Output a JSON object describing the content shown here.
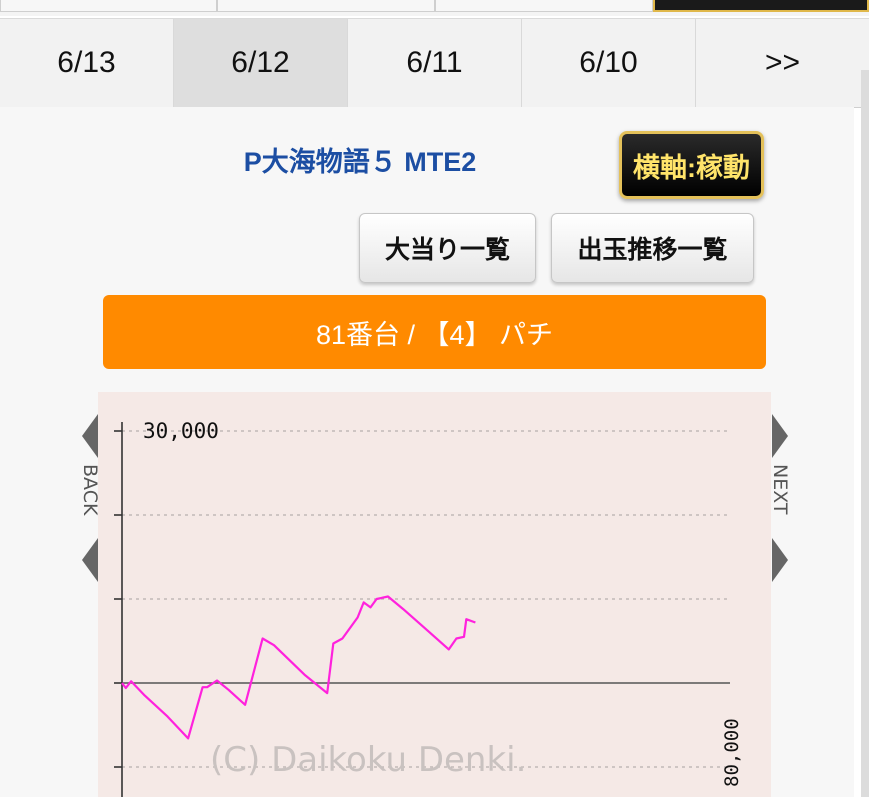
{
  "date_tabs": [
    {
      "label": "6/13"
    },
    {
      "label": "6/12"
    },
    {
      "label": "6/11"
    },
    {
      "label": "6/10"
    },
    {
      "label": ">>"
    }
  ],
  "machine_name": "P大海物語５ MTE2",
  "axis_toggle_label": "横軸:稼動",
  "buttons": {
    "jackpot_list": "大当り一覧",
    "medal_history": "出玉推移一覧"
  },
  "unit_label": "81番台 / 【4】 パチ",
  "graph": {
    "y_top_label": "30,000",
    "x_end_label": "80,000",
    "watermark": "(C) Daikoku Denki.",
    "back_label": "BACK",
    "next_label": "NEXT",
    "line_color": "#ff22dd"
  },
  "chart_data": {
    "type": "line",
    "title": "",
    "xlabel": "",
    "ylabel": "",
    "ylim": [
      -10000,
      30000
    ],
    "grid": true,
    "series": [
      {
        "values": [
          [
            0,
            0
          ],
          [
            500,
            -600
          ],
          [
            1200,
            200
          ],
          [
            3000,
            -1500
          ],
          [
            6000,
            -4000
          ],
          [
            8700,
            -6600
          ],
          [
            10600,
            -500
          ],
          [
            11200,
            -500
          ],
          [
            12500,
            300
          ],
          [
            14000,
            -800
          ],
          [
            16200,
            -2600
          ],
          [
            18500,
            5300
          ],
          [
            20000,
            4500
          ],
          [
            24000,
            1000
          ],
          [
            27000,
            -1200
          ],
          [
            27800,
            4700
          ],
          [
            29000,
            5300
          ],
          [
            31000,
            7800
          ],
          [
            31800,
            9600
          ],
          [
            32700,
            9000
          ],
          [
            33500,
            10000
          ],
          [
            35000,
            10300
          ],
          [
            37000,
            8800
          ],
          [
            40000,
            6400
          ],
          [
            43000,
            4000
          ],
          [
            44000,
            5300
          ],
          [
            45000,
            5500
          ],
          [
            45300,
            7600
          ],
          [
            46500,
            7200
          ]
        ]
      }
    ]
  }
}
